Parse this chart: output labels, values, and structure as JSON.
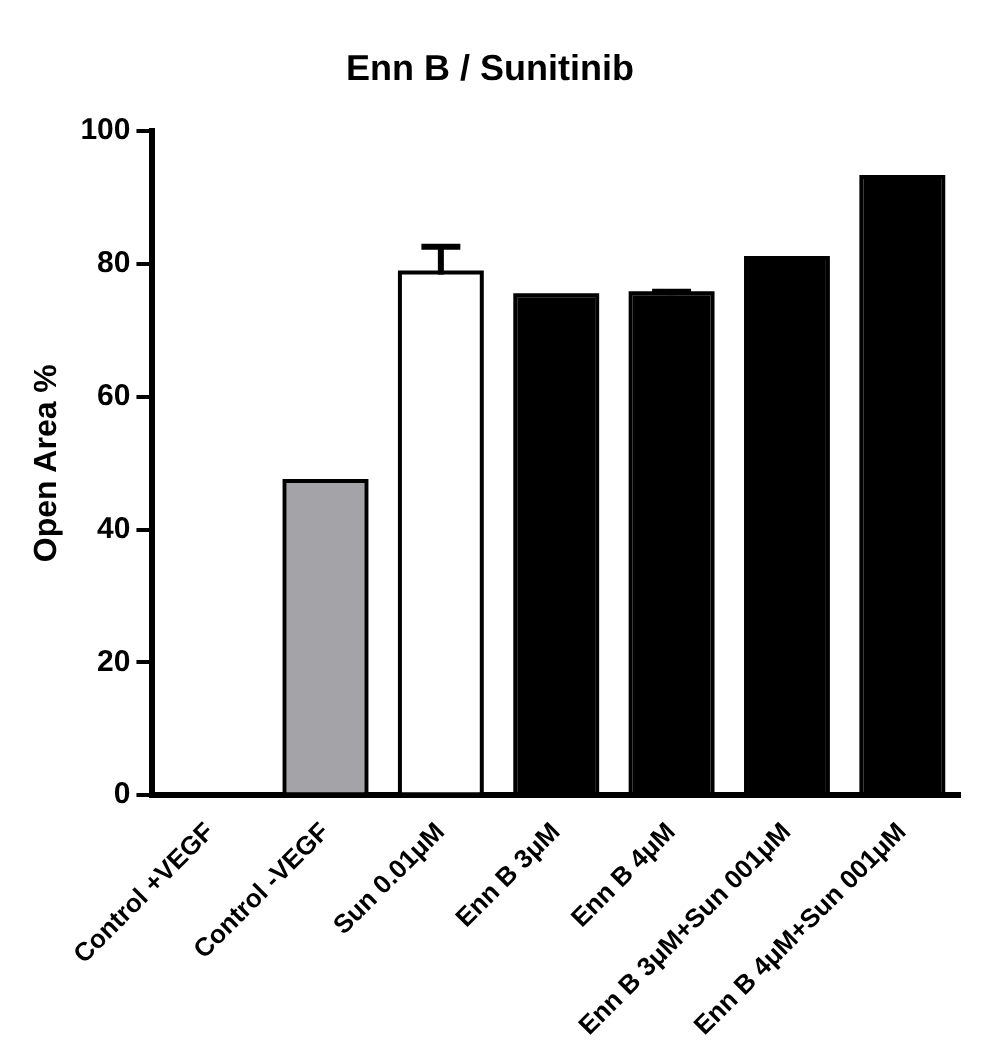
{
  "chart_data": {
    "type": "bar",
    "title": "Enn B / Sunitinib",
    "ylabel": "Open Area %",
    "categories": [
      "Control +VEGF",
      "Control -VEGF",
      "Sun 0.01μM",
      "Enn B 3μM",
      "Enn B 4μM",
      "Enn B 3μM+Sun 001μM",
      "Enn B 4μM+Sun 001μM"
    ],
    "values": [
      0,
      47,
      78.4,
      75,
      75.3,
      80.6,
      92.8
    ],
    "colors": [
      "#ffffff",
      "#a3a3a8",
      "#ffffff",
      "#000000",
      "#000000",
      "#000000",
      "#000000"
    ],
    "errors": [
      null,
      null,
      [
        78.4,
        82.6
      ],
      null,
      [
        75.3,
        75.8
      ],
      null,
      null
    ],
    "ylim": [
      0,
      100
    ],
    "yticks": [
      0,
      20,
      40,
      60,
      80,
      100
    ],
    "grid": false,
    "legend": false
  }
}
